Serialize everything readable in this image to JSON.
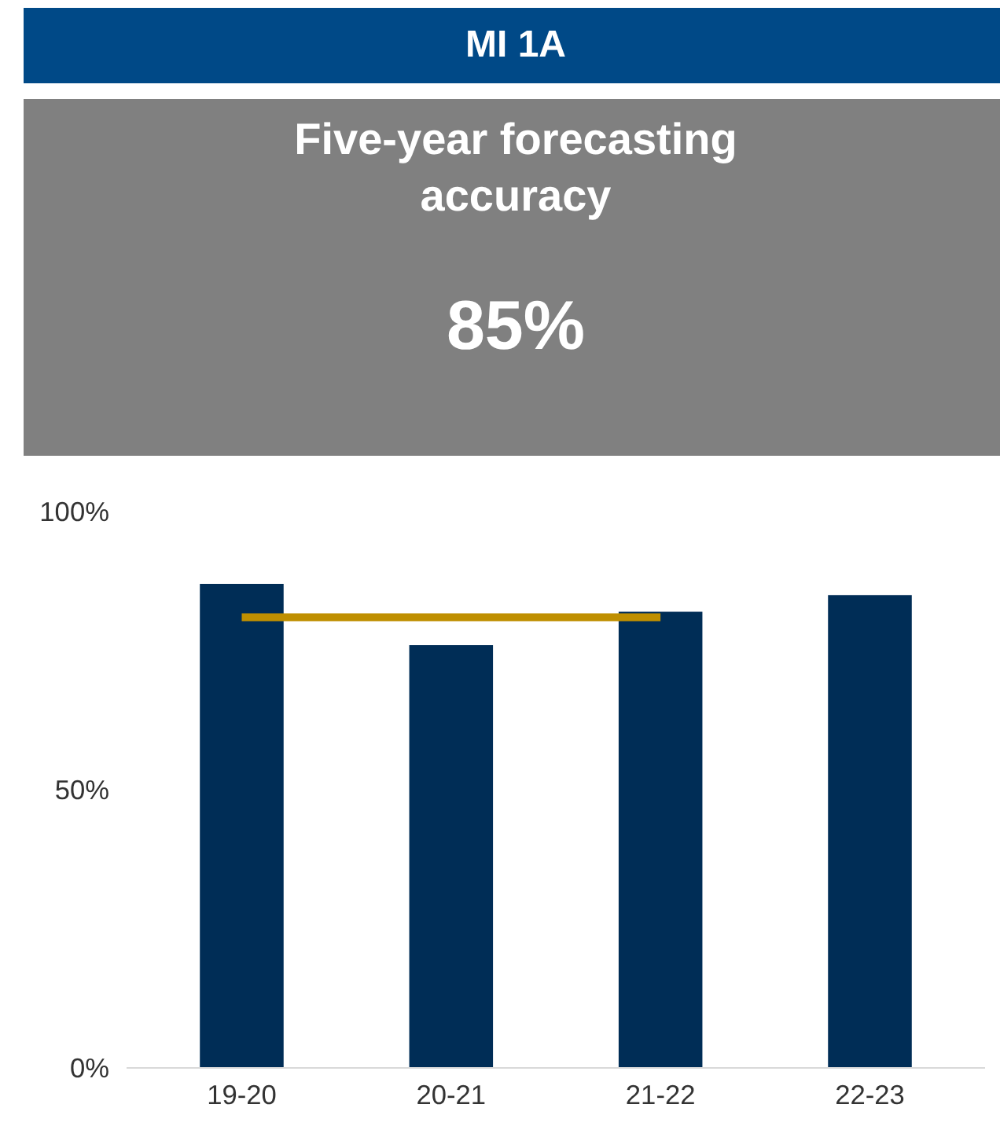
{
  "chart_data": {
    "type": "bar",
    "title": "MI 1A",
    "subtitle": "Five-year forecasting accuracy",
    "annotations": [
      "85%"
    ],
    "categories": [
      "19-20",
      "20-21",
      "21-22",
      "22-23"
    ],
    "series": [
      {
        "color": "#002d56",
        "values": [
          87,
          76,
          82,
          85
        ]
      },
      {
        "type": "line",
        "color": "#bf8f00",
        "values": [
          81,
          81,
          81,
          null
        ]
      }
    ],
    "ylim": [
      0,
      100
    ],
    "yticks": [
      {
        "value": 0,
        "label": "0%"
      },
      {
        "value": 50,
        "label": "50%"
      },
      {
        "value": 100,
        "label": "100%"
      }
    ],
    "grid": false
  }
}
